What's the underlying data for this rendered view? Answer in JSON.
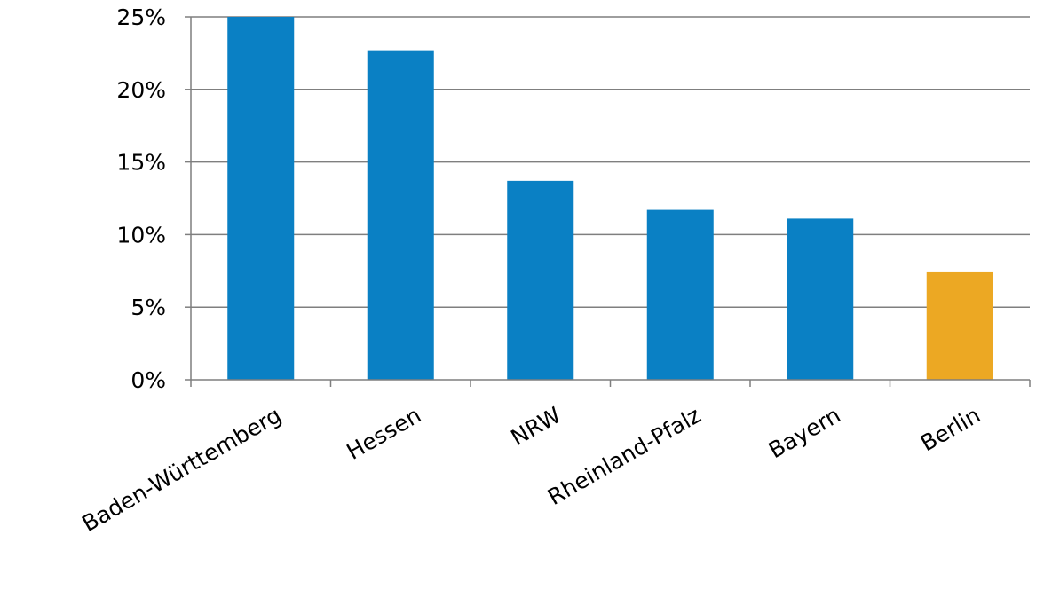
{
  "chart_data": {
    "type": "bar",
    "title": "",
    "xlabel": "",
    "ylabel": "",
    "categories": [
      "Baden-Württemberg",
      "Hessen",
      "NRW",
      "Rheinland-Pfalz",
      "Bayern",
      "Berlin"
    ],
    "values": [
      25.0,
      22.7,
      13.7,
      11.7,
      11.1,
      7.4
    ],
    "bar_colors": [
      "#0a80c4",
      "#0a80c4",
      "#0a80c4",
      "#0a80c4",
      "#0a80c4",
      "#eca823"
    ],
    "ylim": [
      0,
      25
    ],
    "yticks": [
      0,
      5,
      10,
      15,
      20,
      25
    ],
    "ytick_labels": [
      "0%",
      "5%",
      "10%",
      "15%",
      "20%",
      "25%"
    ],
    "grid": true,
    "grid_color": "#7f7f7f",
    "axis_color": "#7f7f7f",
    "legend": "none"
  }
}
